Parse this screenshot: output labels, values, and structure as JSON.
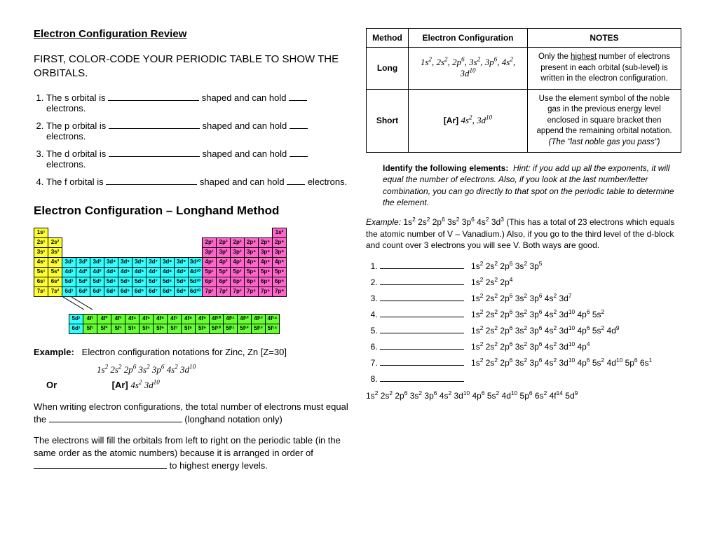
{
  "left": {
    "title": "Electron Configuration Review",
    "instruction": "FIRST, COLOR-CODE YOUR PERIODIC TABLE TO SHOW THE ORBITALS.",
    "orbital_items": [
      {
        "pre": "The s orbital is ",
        "mid": " shaped and can hold ",
        "post": " electrons."
      },
      {
        "pre": "The p orbital is ",
        "mid": " shaped and can hold ",
        "post": " electrons."
      },
      {
        "pre": "The d orbital is ",
        "mid": " shaped and can hold ",
        "post": " electrons."
      },
      {
        "pre": "The f orbital is ",
        "mid": " shaped and can hold ",
        "post": " electrons."
      }
    ],
    "section2": "Electron Configuration – Longhand Method",
    "ptable": {
      "colors": {
        "s": "#ffff33",
        "p": "#ff66cc",
        "d": "#33ffff",
        "f": "#66ff33"
      },
      "rows": [
        [
          {
            "t": "1s¹",
            "c": "s"
          },
          null,
          null,
          null,
          null,
          null,
          null,
          null,
          null,
          null,
          null,
          null,
          null,
          null,
          null,
          null,
          null,
          {
            "t": "1s²",
            "c": "p"
          }
        ],
        [
          {
            "t": "2s¹",
            "c": "s"
          },
          {
            "t": "2s²",
            "c": "s"
          },
          null,
          null,
          null,
          null,
          null,
          null,
          null,
          null,
          null,
          null,
          {
            "t": "2p¹",
            "c": "p"
          },
          {
            "t": "2p²",
            "c": "p"
          },
          {
            "t": "2p³",
            "c": "p"
          },
          {
            "t": "2p⁴",
            "c": "p"
          },
          {
            "t": "2p⁵",
            "c": "p"
          },
          {
            "t": "2p⁶",
            "c": "p"
          }
        ],
        [
          {
            "t": "3s¹",
            "c": "s"
          },
          {
            "t": "3s²",
            "c": "s"
          },
          null,
          null,
          null,
          null,
          null,
          null,
          null,
          null,
          null,
          null,
          {
            "t": "3p¹",
            "c": "p"
          },
          {
            "t": "3p²",
            "c": "p"
          },
          {
            "t": "3p³",
            "c": "p"
          },
          {
            "t": "3p⁴",
            "c": "p"
          },
          {
            "t": "3p⁵",
            "c": "p"
          },
          {
            "t": "3p⁶",
            "c": "p"
          }
        ],
        [
          {
            "t": "4s¹",
            "c": "s"
          },
          {
            "t": "4s²",
            "c": "s"
          },
          {
            "t": "3d¹",
            "c": "d"
          },
          {
            "t": "3d²",
            "c": "d"
          },
          {
            "t": "3d³",
            "c": "d"
          },
          {
            "t": "3d⁴",
            "c": "d"
          },
          {
            "t": "3d⁵",
            "c": "d"
          },
          {
            "t": "3d⁶",
            "c": "d"
          },
          {
            "t": "3d⁷",
            "c": "d"
          },
          {
            "t": "3d⁸",
            "c": "d"
          },
          {
            "t": "3d⁹",
            "c": "d"
          },
          {
            "t": "3d¹⁰",
            "c": "d"
          },
          {
            "t": "4p¹",
            "c": "p"
          },
          {
            "t": "4p²",
            "c": "p"
          },
          {
            "t": "4p³",
            "c": "p"
          },
          {
            "t": "4p⁴",
            "c": "p"
          },
          {
            "t": "4p⁵",
            "c": "p"
          },
          {
            "t": "4p⁶",
            "c": "p"
          }
        ],
        [
          {
            "t": "5s¹",
            "c": "s"
          },
          {
            "t": "5s²",
            "c": "s"
          },
          {
            "t": "4d¹",
            "c": "d"
          },
          {
            "t": "4d²",
            "c": "d"
          },
          {
            "t": "4d³",
            "c": "d"
          },
          {
            "t": "4d⁴",
            "c": "d"
          },
          {
            "t": "4d⁵",
            "c": "d"
          },
          {
            "t": "4d⁶",
            "c": "d"
          },
          {
            "t": "4d⁷",
            "c": "d"
          },
          {
            "t": "4d⁸",
            "c": "d"
          },
          {
            "t": "4d⁹",
            "c": "d"
          },
          {
            "t": "4d¹⁰",
            "c": "d"
          },
          {
            "t": "5p¹",
            "c": "p"
          },
          {
            "t": "5p²",
            "c": "p"
          },
          {
            "t": "5p³",
            "c": "p"
          },
          {
            "t": "5p⁴",
            "c": "p"
          },
          {
            "t": "5p⁵",
            "c": "p"
          },
          {
            "t": "5p⁶",
            "c": "p"
          }
        ],
        [
          {
            "t": "6s¹",
            "c": "s"
          },
          {
            "t": "6s²",
            "c": "s"
          },
          {
            "t": "5d¹",
            "c": "d"
          },
          {
            "t": "5d²",
            "c": "d"
          },
          {
            "t": "5d³",
            "c": "d"
          },
          {
            "t": "5d⁴",
            "c": "d"
          },
          {
            "t": "5d⁵",
            "c": "d"
          },
          {
            "t": "5d⁶",
            "c": "d"
          },
          {
            "t": "5d⁷",
            "c": "d"
          },
          {
            "t": "5d⁸",
            "c": "d"
          },
          {
            "t": "5d⁹",
            "c": "d"
          },
          {
            "t": "5d¹⁰",
            "c": "d"
          },
          {
            "t": "6p¹",
            "c": "p"
          },
          {
            "t": "6p²",
            "c": "p"
          },
          {
            "t": "6p³",
            "c": "p"
          },
          {
            "t": "6p⁴",
            "c": "p"
          },
          {
            "t": "6p⁵",
            "c": "p"
          },
          {
            "t": "6p⁶",
            "c": "p"
          }
        ],
        [
          {
            "t": "7s¹",
            "c": "s"
          },
          {
            "t": "7s²",
            "c": "s"
          },
          {
            "t": "6d¹",
            "c": "d"
          },
          {
            "t": "6d²",
            "c": "d"
          },
          {
            "t": "6d³",
            "c": "d"
          },
          {
            "t": "6d⁴",
            "c": "d"
          },
          {
            "t": "6d⁵",
            "c": "d"
          },
          {
            "t": "6d⁶",
            "c": "d"
          },
          {
            "t": "6d⁷",
            "c": "d"
          },
          {
            "t": "6d⁸",
            "c": "d"
          },
          {
            "t": "6d⁹",
            "c": "d"
          },
          {
            "t": "6d¹⁰",
            "c": "d"
          },
          {
            "t": "7p¹",
            "c": "p"
          },
          {
            "t": "7p²",
            "c": "p"
          },
          {
            "t": "7p³",
            "c": "p"
          },
          {
            "t": "7p⁴",
            "c": "p"
          },
          {
            "t": "7p⁵",
            "c": "p"
          },
          {
            "t": "7p⁶",
            "c": "p"
          }
        ]
      ],
      "lanth": [
        [
          {
            "t": "5d¹",
            "c": "d"
          },
          {
            "t": "4f¹",
            "c": "f"
          },
          {
            "t": "4f²",
            "c": "f"
          },
          {
            "t": "4f³",
            "c": "f"
          },
          {
            "t": "4f⁴",
            "c": "f"
          },
          {
            "t": "4f⁵",
            "c": "f"
          },
          {
            "t": "4f⁶",
            "c": "f"
          },
          {
            "t": "4f⁷",
            "c": "f"
          },
          {
            "t": "4f⁸",
            "c": "f"
          },
          {
            "t": "4f⁹",
            "c": "f"
          },
          {
            "t": "4f¹⁰",
            "c": "f"
          },
          {
            "t": "4f¹¹",
            "c": "f"
          },
          {
            "t": "4f¹²",
            "c": "f"
          },
          {
            "t": "4f¹³",
            "c": "f"
          },
          {
            "t": "4f¹⁴",
            "c": "f"
          }
        ],
        [
          {
            "t": "6d¹",
            "c": "d"
          },
          {
            "t": "5f¹",
            "c": "f"
          },
          {
            "t": "5f²",
            "c": "f"
          },
          {
            "t": "5f³",
            "c": "f"
          },
          {
            "t": "5f⁴",
            "c": "f"
          },
          {
            "t": "5f⁵",
            "c": "f"
          },
          {
            "t": "5f⁶",
            "c": "f"
          },
          {
            "t": "5f⁷",
            "c": "f"
          },
          {
            "t": "5f⁸",
            "c": "f"
          },
          {
            "t": "5f⁹",
            "c": "f"
          },
          {
            "t": "5f¹⁰",
            "c": "f"
          },
          {
            "t": "5f¹¹",
            "c": "f"
          },
          {
            "t": "5f¹²",
            "c": "f"
          },
          {
            "t": "5f¹³",
            "c": "f"
          },
          {
            "t": "5f¹⁴",
            "c": "f"
          }
        ]
      ]
    },
    "example_label": "Example:",
    "example_text": "Electron configuration notations for Zinc, Zn [Z=30]",
    "ec_long_html": "1s<sup>2</sup> 2s<sup>2</sup> 2p<sup>6</sup> 3s<sup>2</sup> 3p<sup>6</sup> 4s<sup>2</sup> 3d<sup>10</sup>",
    "or_label": "Or",
    "ec_short_prefix": "[Ar] ",
    "ec_short_html": "4s<sup>2</sup> 3d<sup>10</sup>",
    "para1_pre": "When writing electron configurations, the total number of electrons must equal the ",
    "para1_post": " (longhand notation only)",
    "para2_pre": "The electrons will fill the orbitals from left to right on the periodic table (in the same order as the atomic numbers) because it is arranged in order of ",
    "para2_post": " to highest energy levels."
  },
  "right": {
    "table": {
      "headers": [
        "Method",
        "Electron Configuration",
        "NOTES"
      ],
      "rows": [
        {
          "method": "Long",
          "ec_html": "1s<sup>2</sup>, 2s<sup>2</sup>, 2p<sup>6</sup>, 3s<sup>2</sup>, 3p<sup>6</sup>, 4s<sup>2</sup>, 3d<sup>10</sup>",
          "notes_html": "Only the <span class='ul'>highest</span> number of electrons present in each orbital (sub-level) is written in the electron configuration."
        },
        {
          "method": "Short",
          "ec_prefix": "[Ar] ",
          "ec_html": "4s<sup>2</sup>, 3d<sup>10</sup>",
          "notes_html": "Use the element symbol of the noble gas in the previous energy level enclosed in square bracket then append the remaining orbital notation. <i>(The \"last noble gas you pass\")</i>"
        }
      ]
    },
    "identify_lead": "Identify the following elements:",
    "identify_hint": "Hint: if you add up all the exponents, it will equal the number of electrons. Also, if you look at the last number/letter combination, you can go directly to that spot on the periodic table to determine the element.",
    "example_lead": "Example:",
    "example_ec_html": "1s<sup>2</sup> 2s<sup>2</sup> 2p<sup>6</sup> 3s<sup>2</sup> 3p<sup>6</sup> 4s<sup>2</sup> 3d<sup>3</sup>",
    "example_rest": "  (This has a total of 23 electrons which equals the atomic number of V – Vanadium.) Also, if you go to the third level of the d-block and count over 3 electrons you will see V. Both ways are good.",
    "problems": [
      "1s<sup>2</sup> 2s<sup>2</sup> 2p<sup>6</sup> 3s<sup>2</sup> 3p<sup>5</sup>",
      "1s<sup>2</sup> 2s<sup>2</sup> 2p<sup>4</sup>",
      "1s<sup>2</sup> 2s<sup>2</sup> 2p<sup>6</sup> 3s<sup>2</sup> 3p<sup>6</sup> 4s<sup>2</sup> 3d<sup>7</sup>",
      "1s<sup>2</sup> 2s<sup>2</sup> 2p<sup>6</sup> 3s<sup>2</sup> 3p<sup>6</sup> 4s<sup>2</sup> 3d<sup>10</sup> 4p<sup>6</sup> 5s<sup>2</sup>",
      "1s<sup>2</sup> 2s<sup>2</sup> 2p<sup>6</sup> 3s<sup>2</sup> 3p<sup>6</sup> 4s<sup>2</sup> 3d<sup>10</sup> 4p<sup>6</sup> 5s<sup>2</sup> 4d<sup>9</sup>",
      "1s<sup>2</sup> 2s<sup>2</sup> 2p<sup>6</sup> 3s<sup>2</sup> 3p<sup>6</sup> 4s<sup>2</sup> 3d<sup>10</sup> 4p<sup>4</sup>",
      "1s<sup>2</sup> 2s<sup>2</sup> 2p<sup>6</sup> 3s<sup>2</sup> 3p<sup>6</sup> 4s<sup>2</sup> 3d<sup>10</sup> 4p<sup>6</sup> 5s<sup>2</sup> 4d<sup>10</sup> 5p<sup>6</sup> 6s<sup>1</sup>",
      ""
    ],
    "problem8_long": "1s<sup>2</sup> 2s<sup>2</sup> 2p<sup>6</sup> 3s<sup>2</sup> 3p<sup>6</sup> 4s<sup>2</sup> 3d<sup>10</sup> 4p<sup>6</sup> 5s<sup>2</sup> 4d<sup>10</sup> 5p<sup>6</sup> 6s<sup>2</sup> 4f<sup>14</sup> 5d<sup>9</sup>"
  }
}
